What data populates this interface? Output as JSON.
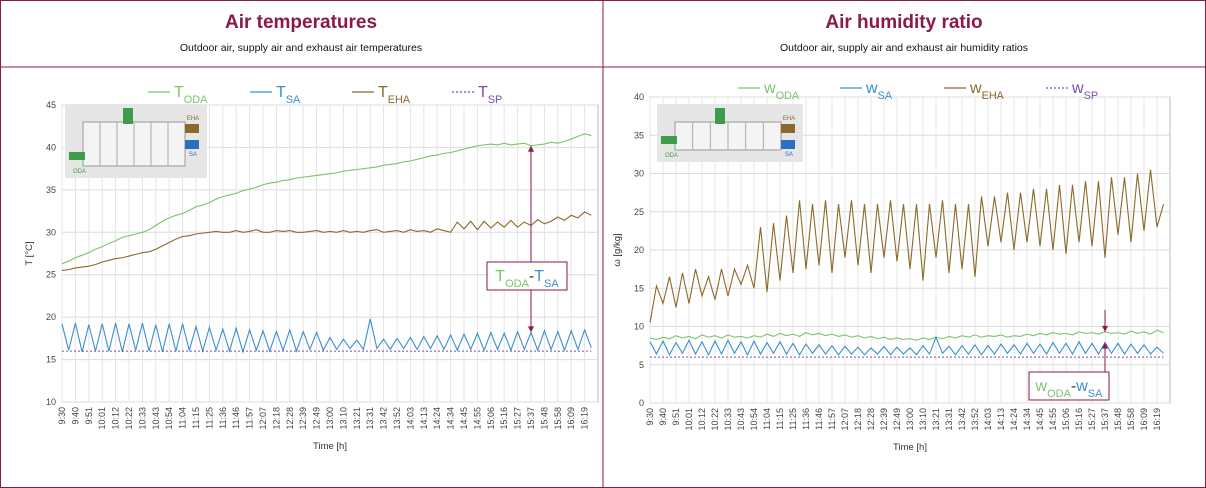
{
  "chart_data": [
    {
      "type": "line",
      "title": "Air temperatures",
      "subtitle": "Outdoor air, supply air and exhaust air temperatures",
      "xlabel": "Time [h]",
      "ylabel": "T [°C]",
      "ylim": [
        10,
        45
      ],
      "yticks": [
        10,
        15,
        20,
        25,
        30,
        35,
        40,
        45
      ],
      "grid": true,
      "inset_labels": [
        "EHA",
        "ODA",
        "SA"
      ],
      "annotation": "TODA-TSA",
      "categories": [
        "9:30",
        null,
        "9:40",
        null,
        "9:51",
        null,
        "10:01",
        null,
        "10:12",
        null,
        "10:22",
        null,
        "10:33",
        null,
        "10:43",
        null,
        "10:54",
        null,
        "11:04",
        null,
        "11:15",
        null,
        "11:25",
        null,
        "11:36",
        null,
        "11:46",
        null,
        "11:57",
        null,
        "12:07",
        null,
        "12:18",
        null,
        "12:28",
        null,
        "12:39",
        null,
        "12:49",
        null,
        "13:00",
        null,
        "13:10",
        null,
        "13:21",
        null,
        "13:31",
        null,
        "13:42",
        null,
        "13:52",
        null,
        "14:03",
        null,
        "14:13",
        null,
        "14:24",
        null,
        "14:34",
        null,
        "14:45",
        null,
        "14:55",
        null,
        "15:06",
        null,
        "15:16",
        null,
        "15:27",
        null,
        "15:37",
        null,
        "15:48",
        null,
        "15:58",
        null,
        "16:09",
        null,
        "16:19",
        null
      ],
      "series": [
        {
          "name": "TODA",
          "color": "#7cc36a",
          "line_style": "solid",
          "values": [
            26.3,
            26.6,
            27.0,
            27.3,
            27.6,
            28.0,
            28.3,
            28.7,
            29.0,
            29.4,
            29.6,
            29.8,
            30.0,
            30.3,
            30.8,
            31.3,
            31.7,
            32.0,
            32.2,
            32.6,
            33.0,
            33.2,
            33.5,
            33.9,
            34.2,
            34.4,
            34.6,
            34.9,
            35.1,
            35.3,
            35.6,
            35.8,
            35.9,
            36.1,
            36.2,
            36.4,
            36.5,
            36.6,
            36.7,
            36.8,
            36.9,
            37.0,
            37.2,
            37.3,
            37.4,
            37.5,
            37.6,
            37.7,
            37.9,
            38.0,
            38.1,
            38.3,
            38.4,
            38.6,
            38.8,
            39.0,
            39.1,
            39.3,
            39.4,
            39.6,
            39.8,
            40.0,
            40.2,
            40.3,
            40.4,
            40.3,
            40.5,
            40.3,
            40.4,
            40.5,
            40.2,
            40.3,
            40.4,
            40.6,
            40.5,
            40.7,
            41.0,
            41.3,
            41.6,
            41.4
          ]
        },
        {
          "name": "TSA",
          "color": "#3a8fd1",
          "line_style": "solid",
          "values": [
            19.2,
            16.1,
            19.3,
            15.9,
            19.1,
            16.0,
            19.2,
            16.0,
            19.3,
            15.9,
            19.2,
            16.1,
            19.3,
            16.0,
            19.1,
            15.9,
            19.2,
            16.0,
            19.2,
            16.1,
            18.9,
            16.0,
            18.8,
            16.1,
            18.6,
            16.0,
            18.7,
            15.9,
            18.5,
            16.1,
            18.4,
            16.0,
            18.3,
            16.1,
            18.5,
            16.0,
            18.3,
            16.2,
            18.2,
            16.1,
            17.6,
            16.2,
            17.4,
            16.3,
            17.3,
            16.2,
            19.8,
            16.3,
            17.4,
            16.2,
            17.5,
            16.3,
            17.6,
            16.2,
            17.7,
            16.3,
            17.8,
            16.2,
            17.9,
            16.1,
            18.0,
            16.2,
            18.1,
            16.1,
            18.2,
            16.2,
            18.1,
            16.1,
            18.3,
            16.2,
            18.2,
            16.1,
            18.4,
            16.2,
            18.3,
            16.1,
            18.4,
            16.2,
            18.5,
            16.4
          ]
        },
        {
          "name": "TEHA",
          "color": "#8a6a2a",
          "line_style": "solid",
          "values": [
            25.5,
            25.6,
            25.8,
            25.9,
            26.0,
            26.2,
            26.5,
            26.7,
            26.9,
            27.0,
            27.2,
            27.4,
            27.6,
            27.7,
            28.0,
            28.4,
            28.8,
            29.2,
            29.5,
            29.6,
            29.8,
            29.9,
            30.0,
            30.1,
            30.0,
            30.0,
            30.2,
            30.0,
            30.1,
            30.3,
            30.0,
            30.0,
            30.2,
            30.1,
            30.2,
            30.0,
            30.0,
            30.1,
            30.2,
            30.0,
            30.1,
            30.0,
            30.2,
            30.0,
            30.1,
            30.0,
            30.2,
            30.3,
            30.0,
            30.1,
            30.2,
            30.0,
            30.3,
            30.1,
            30.2,
            30.0,
            30.4,
            30.2,
            30.0,
            31.2,
            30.4,
            31.3,
            30.3,
            31.3,
            30.5,
            31.2,
            30.6,
            31.4,
            30.6,
            31.2,
            30.8,
            31.5,
            31.0,
            31.3,
            31.8,
            31.4,
            32.0,
            31.7,
            32.4,
            32.0
          ]
        },
        {
          "name": "TSP",
          "color": "#7b4db3",
          "line_style": "dashed",
          "values": [
            16,
            16,
            16,
            16,
            16,
            16,
            16,
            16,
            16,
            16,
            16,
            16,
            16,
            16,
            16,
            16,
            16,
            16,
            16,
            16,
            16,
            16,
            16,
            16,
            16,
            16,
            16,
            16,
            16,
            16,
            16,
            16,
            16,
            16,
            16,
            16,
            16,
            16,
            16,
            16,
            16,
            16,
            16,
            16,
            16,
            16,
            16,
            16,
            16,
            16,
            16,
            16,
            16,
            16,
            16,
            16,
            16,
            16,
            16,
            16,
            16,
            16,
            16,
            16,
            16,
            16,
            16,
            16,
            16,
            16,
            16,
            16,
            16,
            16,
            16,
            16,
            16,
            16,
            16,
            16
          ]
        }
      ]
    },
    {
      "type": "line",
      "title": "Air humidity ratio",
      "subtitle": "Outdoor air, supply air and exhaust air humidity ratios",
      "xlabel": "Time [h]",
      "ylabel": "ω [g/kg]",
      "ylim": [
        0,
        40
      ],
      "yticks": [
        0,
        5,
        10,
        15,
        20,
        25,
        30,
        35,
        40
      ],
      "grid": true,
      "inset_labels": [
        "EHA",
        "ODA",
        "SA"
      ],
      "annotation": "wODA-wSA",
      "categories": [
        "9:30",
        null,
        "9:40",
        null,
        "9:51",
        null,
        "10:01",
        null,
        "10:12",
        null,
        "10:22",
        null,
        "10:33",
        null,
        "10:43",
        null,
        "10:54",
        null,
        "11:04",
        null,
        "11:15",
        null,
        "11:25",
        null,
        "11:36",
        null,
        "11:46",
        null,
        "11:57",
        null,
        "12:07",
        null,
        "12:18",
        null,
        "12:28",
        null,
        "12:39",
        null,
        "12:49",
        null,
        "13:00",
        null,
        "13:10",
        null,
        "13:21",
        null,
        "13:31",
        null,
        "13:42",
        null,
        "13:52",
        null,
        "14:03",
        null,
        "14:13",
        null,
        "14:24",
        null,
        "14:34",
        null,
        "14:45",
        null,
        "14:55",
        null,
        "15:06",
        null,
        "15:16",
        null,
        "15:27",
        null,
        "15:37",
        null,
        "15:48",
        null,
        "15:58",
        null,
        "16:09",
        null,
        "16:19",
        null
      ],
      "series": [
        {
          "name": "wODA",
          "color": "#7cc36a",
          "line_style": "solid",
          "values": [
            8.5,
            8.3,
            8.6,
            8.4,
            8.8,
            8.5,
            8.7,
            8.4,
            8.9,
            8.6,
            8.8,
            8.5,
            8.9,
            8.6,
            8.7,
            8.5,
            8.8,
            8.6,
            9.0,
            8.7,
            9.1,
            8.8,
            9.0,
            8.7,
            9.2,
            8.9,
            9.1,
            8.8,
            9.0,
            8.7,
            8.9,
            8.6,
            8.8,
            8.5,
            8.7,
            8.4,
            8.6,
            8.3,
            8.5,
            8.3,
            8.4,
            8.2,
            8.5,
            8.3,
            8.6,
            8.4,
            8.7,
            8.5,
            8.8,
            8.6,
            8.9,
            8.6,
            8.8,
            8.7,
            8.9,
            8.6,
            8.8,
            8.7,
            9.0,
            8.8,
            9.1,
            8.9,
            9.2,
            9.0,
            9.1,
            8.9,
            9.3,
            9.1,
            9.2,
            9.0,
            9.3,
            9.1,
            9.2,
            9.0,
            9.4,
            9.1,
            9.3,
            9.0,
            9.5,
            9.2
          ]
        },
        {
          "name": "wSA",
          "color": "#3a8fd1",
          "line_style": "solid",
          "values": [
            8.0,
            6.4,
            8.1,
            6.3,
            7.9,
            6.5,
            8.2,
            6.4,
            8.0,
            6.3,
            8.1,
            6.4,
            8.2,
            6.5,
            8.0,
            6.3,
            8.1,
            6.4,
            7.9,
            6.5,
            8.0,
            6.4,
            7.8,
            6.3,
            7.7,
            6.5,
            7.6,
            6.4,
            7.5,
            6.3,
            7.4,
            6.4,
            7.3,
            6.3,
            7.2,
            6.4,
            7.4,
            6.3,
            7.3,
            6.4,
            7.2,
            6.3,
            7.5,
            6.4,
            8.6,
            6.5,
            7.4,
            6.3,
            7.5,
            6.4,
            7.6,
            6.3,
            7.5,
            6.4,
            7.7,
            6.5,
            7.6,
            6.4,
            7.8,
            6.5,
            7.7,
            6.4,
            7.9,
            6.5,
            7.8,
            6.4,
            8.0,
            6.5,
            7.8,
            6.4,
            7.9,
            6.5,
            7.8,
            6.4,
            7.7,
            6.5,
            7.6,
            6.4,
            7.3,
            6.5
          ]
        },
        {
          "name": "wEHA",
          "color": "#8a6a2a",
          "line_style": "solid",
          "values": [
            10.5,
            15.3,
            13.0,
            16.5,
            12.5,
            17.0,
            13.0,
            17.5,
            14.0,
            16.5,
            13.5,
            17.5,
            14.0,
            17.5,
            15.5,
            18.0,
            15.0,
            23.0,
            14.5,
            23.5,
            16.0,
            24.5,
            17.0,
            26.5,
            17.5,
            26.0,
            18.0,
            26.5,
            17.0,
            26.0,
            19.0,
            26.5,
            18.0,
            26.0,
            17.0,
            26.0,
            19.0,
            26.5,
            18.5,
            26.0,
            17.5,
            26.0,
            16.0,
            26.0,
            19.0,
            26.5,
            17.0,
            26.0,
            17.5,
            26.0,
            16.5,
            27.0,
            20.5,
            27.0,
            21.0,
            27.5,
            20.0,
            27.5,
            21.0,
            28.0,
            20.5,
            28.0,
            20.0,
            28.5,
            19.5,
            28.5,
            21.0,
            29.0,
            20.5,
            29.0,
            19.0,
            29.5,
            22.0,
            29.5,
            21.0,
            30.0,
            22.5,
            30.5,
            23.0,
            26.0
          ]
        },
        {
          "name": "wSP",
          "color": "#7b4db3",
          "line_style": "dashed",
          "values": [
            6,
            6,
            6,
            6,
            6,
            6,
            6,
            6,
            6,
            6,
            6,
            6,
            6,
            6,
            6,
            6,
            6,
            6,
            6,
            6,
            6,
            6,
            6,
            6,
            6,
            6,
            6,
            6,
            6,
            6,
            6,
            6,
            6,
            6,
            6,
            6,
            6,
            6,
            6,
            6,
            6,
            6,
            6,
            6,
            6,
            6,
            6,
            6,
            6,
            6,
            6,
            6,
            6,
            6,
            6,
            6,
            6,
            6,
            6,
            6,
            6,
            6,
            6,
            6,
            6,
            6,
            6,
            6,
            6,
            6,
            6,
            6,
            6,
            6,
            6,
            6,
            6,
            6,
            6,
            6
          ]
        }
      ]
    }
  ]
}
